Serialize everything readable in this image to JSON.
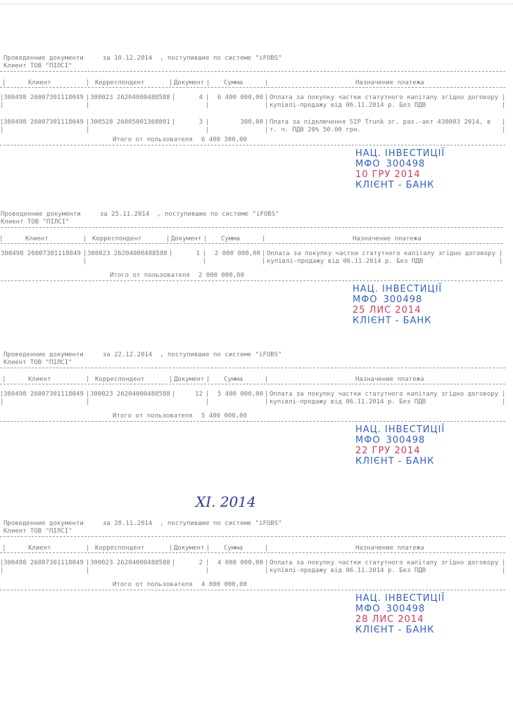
{
  "handwritten_note": "XI. 2014",
  "columns": {
    "client": "Клиент",
    "correspondent": "Корреспондент",
    "document": "Документ",
    "amount": "Сумма",
    "purpose": "Назначение платежа"
  },
  "stamp": {
    "bank": "НАЦ. ІНВЕСТИЦІЇ",
    "mfo_label": "МФО",
    "mfo_code": "300498",
    "footer": "КЛІЄНТ - БАНК",
    "colors": {
      "blue": "#2f5fc8",
      "red": "#d9365e"
    }
  },
  "total_label": "Итого от пользователя",
  "sections": [
    {
      "title": "Проведенние документи     за 10.12.2014  , поступившие по системе \"iFOBS\"",
      "client": "Клиент ТОВ \"ПІЛСІ\"",
      "stamp_date": "10 ГРУ 2014",
      "rows": [
        {
          "client": "300498 26007301118049",
          "correspondent": "300023 26204000488588",
          "document": "4",
          "amount": "6 400 000,00",
          "purpose_1": "Оплата за покупку частки статутного капіталу згідно договору",
          "purpose_2": "купівлі-продажу від 06.11.2014 р. Без ПДВ"
        },
        {
          "client": "300498 26007301118049",
          "correspondent": "300528 26005001368801",
          "document": "3",
          "amount": "300,00",
          "purpose_1": "Плата за підключення SIP Trunk зг. рах.-акт 430003 2014, в",
          "purpose_2": "т. ч. ПДВ 20% 50.00 грн."
        }
      ],
      "total": "6 400 300,00"
    },
    {
      "title": "Проведенние документи     за 25.11.2014  , поступившие по системе \"iFOBS\"",
      "client": "Клиент ТОВ \"ПІЛСІ\"",
      "stamp_date": "25 ЛИС 2014",
      "rows": [
        {
          "client": "300498 26007301118049",
          "correspondent": "300023 26204000488588",
          "document": "1",
          "amount": "2 000 000,00",
          "purpose_1": "Оплата за покупку частки статутного капіталу згідно договору",
          "purpose_2": "купівлі-продажу від 06.11.2014 р. Без ПДВ"
        }
      ],
      "total": "2 000 000,00"
    },
    {
      "title": "Проведенние документи     за 22.12.2014  , поступившие по системе \"iFOBS\"",
      "client": "Клиент ТОВ \"ПІЛСІ\"",
      "stamp_date": "22 ГРУ 2014",
      "rows": [
        {
          "client": "300498 26007301118049",
          "correspondent": "300023 26204000488588",
          "document": "12",
          "amount": "5 400 000,00",
          "purpose_1": "Оплата за покупку частки статутного капіталу згідно договору",
          "purpose_2": "купівлі-продажу від 06.11.2014 р. Без ПДВ"
        }
      ],
      "total": "5 400 000,00"
    },
    {
      "title": "Проведенние документи     за 28.11.2014  , поступившие по системе \"iFOBS\"",
      "client": "Клиент ТОВ \"ПІЛСІ\"",
      "stamp_date": "28 ЛИС 2014",
      "rows": [
        {
          "client": "300498 26007301118049",
          "correspondent": "300023 26204000488588",
          "document": "2",
          "amount": "4 000 000,00",
          "purpose_1": "Оплата за покупку частки статутного капіталу згідно договору",
          "purpose_2": "купівлі-продажу від 06.11.2014 р. Без ПДВ"
        }
      ],
      "total": "4 000 000,00"
    }
  ]
}
